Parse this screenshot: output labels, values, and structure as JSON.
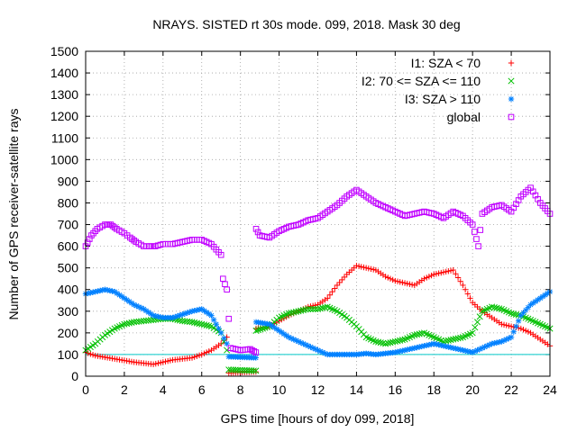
{
  "chart_data": {
    "type": "scatter",
    "title": "NRAYS. SISTED rt 30s mode. 099, 2018. Mask 30 deg",
    "xlabel": "GPS time [hours of doy 099, 2018]",
    "ylabel": "Number of GPS receiver-satellite rays",
    "xlim": [
      0,
      24
    ],
    "ylim": [
      0,
      1500
    ],
    "xticks": [
      "0",
      "2",
      "4",
      "6",
      "8",
      "10",
      "12",
      "14",
      "16",
      "18",
      "20",
      "22",
      "24"
    ],
    "yticks": [
      "0",
      "100",
      "200",
      "300",
      "400",
      "500",
      "600",
      "700",
      "800",
      "900",
      "1000",
      "1100",
      "1200",
      "1300",
      "1400",
      "1500"
    ],
    "grid": true,
    "legend_position": "top-right",
    "reference_line": {
      "y": 100,
      "color": "#00c8c8"
    },
    "series": [
      {
        "name": "I1: SZA < 70",
        "marker": "+",
        "color": "#ff0000",
        "x": [
          0,
          0.5,
          1.5,
          2.5,
          3.0,
          3.5,
          4.0,
          4.5,
          5.0,
          5.5,
          6.0,
          6.5,
          7.0,
          7.3,
          7.4,
          8.8,
          8.81,
          9.5,
          10.5,
          11.5,
          12.0,
          12.5,
          13.0,
          13.5,
          14.0,
          14.5,
          15.0,
          15.5,
          16.0,
          16.5,
          17.0,
          17.5,
          18.0,
          18.5,
          19.0,
          19.5,
          20.0,
          20.5,
          21.0,
          21.5,
          22.0,
          22.5,
          23.0,
          23.5,
          24.0
        ],
        "y": [
          110,
          95,
          80,
          65,
          60,
          55,
          65,
          75,
          80,
          85,
          100,
          120,
          150,
          180,
          15,
          20,
          220,
          230,
          280,
          320,
          330,
          360,
          420,
          470,
          510,
          500,
          490,
          460,
          440,
          430,
          420,
          450,
          470,
          480,
          490,
          420,
          340,
          300,
          270,
          240,
          230,
          220,
          200,
          170,
          140
        ]
      },
      {
        "name": "I2: 70 <= SZA <= 110",
        "marker": "x",
        "color": "#00c000",
        "x": [
          0,
          0.5,
          1.0,
          1.5,
          2.0,
          2.5,
          3.0,
          3.5,
          4.0,
          4.5,
          5.0,
          5.5,
          6.0,
          6.5,
          7.0,
          7.3,
          7.4,
          8.8,
          8.81,
          9.5,
          10.0,
          10.5,
          11.0,
          11.5,
          12.0,
          12.5,
          13.0,
          13.5,
          14.0,
          14.5,
          15.0,
          15.5,
          16.0,
          16.5,
          17.0,
          17.5,
          18.0,
          18.5,
          19.0,
          19.5,
          20.0,
          20.5,
          21.0,
          21.5,
          22.0,
          22.5,
          23.0,
          23.5,
          24.0
        ],
        "y": [
          120,
          150,
          190,
          220,
          240,
          250,
          255,
          260,
          265,
          265,
          255,
          250,
          240,
          230,
          200,
          120,
          30,
          25,
          210,
          230,
          270,
          290,
          300,
          310,
          310,
          320,
          300,
          270,
          230,
          180,
          160,
          150,
          160,
          170,
          190,
          200,
          180,
          160,
          170,
          180,
          200,
          300,
          320,
          310,
          290,
          280,
          260,
          240,
          220
        ]
      },
      {
        "name": "I3: SZA > 110",
        "marker": "*",
        "color": "#0080ff",
        "x": [
          0,
          0.5,
          1.0,
          1.5,
          2.0,
          2.5,
          3.0,
          3.5,
          4.0,
          4.5,
          5.0,
          5.5,
          6.0,
          6.5,
          7.0,
          7.3,
          7.4,
          8.8,
          8.81,
          9.5,
          10.0,
          10.5,
          11.0,
          11.5,
          12.0,
          12.5,
          13.0,
          13.5,
          14.0,
          14.5,
          15.0,
          15.5,
          16.0,
          16.5,
          17.0,
          17.5,
          18.0,
          18.5,
          19.0,
          19.5,
          20.0,
          20.5,
          21.0,
          21.5,
          22.0,
          22.5,
          23.0,
          23.5,
          24.0
        ],
        "y": [
          380,
          390,
          400,
          390,
          360,
          330,
          310,
          280,
          270,
          270,
          285,
          300,
          310,
          280,
          200,
          150,
          90,
          85,
          250,
          240,
          210,
          180,
          160,
          140,
          120,
          100,
          100,
          100,
          100,
          105,
          100,
          105,
          110,
          120,
          130,
          140,
          150,
          140,
          130,
          120,
          110,
          130,
          150,
          160,
          180,
          280,
          330,
          360,
          390
        ]
      },
      {
        "name": "global",
        "marker": "square",
        "color": "#c000ff",
        "x": [
          0,
          0.3,
          0.6,
          1.0,
          1.3,
          1.6,
          2.0,
          2.3,
          2.6,
          3.0,
          3.3,
          3.6,
          4.0,
          4.5,
          5.0,
          5.5,
          6.0,
          6.5,
          7.0,
          7.1,
          7.3,
          7.5,
          8.0,
          8.5,
          8.8,
          8.81,
          9.0,
          9.5,
          10.0,
          10.5,
          11.0,
          11.5,
          12.0,
          12.5,
          13.0,
          13.5,
          14.0,
          14.5,
          15.0,
          15.5,
          16.0,
          16.5,
          17.0,
          17.5,
          18.0,
          18.5,
          19.0,
          19.5,
          20.0,
          20.3,
          20.5,
          21.0,
          21.5,
          22.0,
          22.5,
          23.0,
          23.5,
          24.0
        ],
        "y": [
          600,
          650,
          680,
          700,
          700,
          680,
          660,
          640,
          620,
          600,
          600,
          600,
          610,
          610,
          620,
          630,
          630,
          610,
          560,
          450,
          400,
          130,
          120,
          125,
          110,
          680,
          650,
          640,
          670,
          690,
          700,
          720,
          730,
          760,
          790,
          830,
          860,
          830,
          800,
          780,
          760,
          740,
          750,
          760,
          750,
          730,
          760,
          740,
          700,
          600,
          750,
          780,
          790,
          760,
          830,
          870,
          800,
          750
        ]
      }
    ]
  }
}
